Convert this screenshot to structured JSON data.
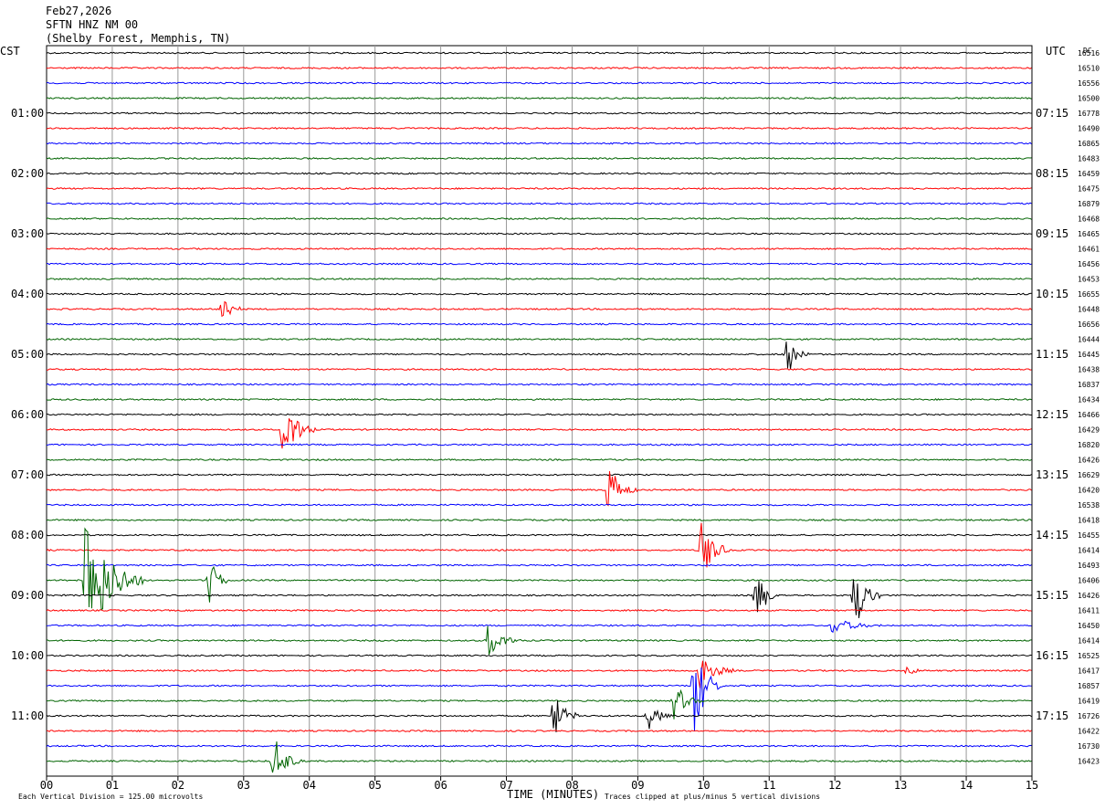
{
  "header": {
    "date": "Feb27,2026",
    "station": "SFTN HNZ NM 00",
    "location": "(Shelby Forest, Memphis, TN)"
  },
  "left_axis_title": "CST",
  "right_axis_title": "UTC",
  "dc_title": "DC",
  "footer": {
    "scale_note": "Each Vertical Division =  125.00 microvolts",
    "clip_note": "Traces clipped at plus/minus 5 vertical divisions"
  },
  "colors": {
    "trace_cycle": [
      "#000000",
      "#ff0000",
      "#0000ff",
      "#006400"
    ],
    "grid": "#999999"
  },
  "chart_data": {
    "type": "line",
    "xlabel": "TIME (MINUTES)",
    "xlim": [
      0,
      15
    ],
    "x_ticks": [
      "00",
      "01",
      "02",
      "03",
      "04",
      "05",
      "06",
      "07",
      "08",
      "09",
      "10",
      "11",
      "12",
      "13",
      "14",
      "15"
    ],
    "row_count": 48,
    "left_hour_labels": [
      "01:00",
      "02:00",
      "03:00",
      "04:00",
      "05:00",
      "06:00",
      "07:00",
      "08:00",
      "09:00",
      "10:00",
      "11:00"
    ],
    "right_hour_labels": [
      "07:15",
      "08:15",
      "09:15",
      "10:15",
      "11:15",
      "12:15",
      "13:15",
      "14:15",
      "15:15",
      "16:15",
      "17:15"
    ],
    "dc_values": [
      "16516",
      "16510",
      "16556",
      "16500",
      "16778",
      "16490",
      "16865",
      "16483",
      "16459",
      "16475",
      "16879",
      "16468",
      "16465",
      "16461",
      "16456",
      "16453",
      "16655",
      "16448",
      "16656",
      "16444",
      "16445",
      "16438",
      "16837",
      "16434",
      "16466",
      "16429",
      "16820",
      "16426",
      "16629",
      "16420",
      "16538",
      "16418",
      "16455",
      "16414",
      "16493",
      "16406",
      "16426",
      "16411",
      "16450",
      "16414",
      "16525",
      "16417",
      "16857",
      "16419",
      "16726",
      "16422",
      "16730",
      "16423"
    ],
    "events": [
      {
        "row": 17,
        "minute": 2.67,
        "amplitude": 1.3,
        "duration": 0.3
      },
      {
        "row": 20,
        "minute": 11.25,
        "amplitude": 2.0,
        "duration": 0.35
      },
      {
        "row": 25,
        "minute": 3.6,
        "amplitude": 2.2,
        "duration": 0.5
      },
      {
        "row": 29,
        "minute": 8.55,
        "amplitude": 2.0,
        "duration": 0.45
      },
      {
        "row": 33,
        "minute": 9.97,
        "amplitude": 2.2,
        "duration": 0.45
      },
      {
        "row": 35,
        "minute": 0.58,
        "amplitude": 5.0,
        "duration": 0.9
      },
      {
        "row": 35,
        "minute": 2.47,
        "amplitude": 1.8,
        "duration": 0.35
      },
      {
        "row": 36,
        "minute": 10.8,
        "amplitude": 2.0,
        "duration": 0.35
      },
      {
        "row": 36,
        "minute": 12.3,
        "amplitude": 2.5,
        "duration": 0.4
      },
      {
        "row": 38,
        "minute": 11.95,
        "amplitude": 0.6,
        "duration": 0.9
      },
      {
        "row": 39,
        "minute": 6.72,
        "amplitude": 1.2,
        "duration": 0.5
      },
      {
        "row": 41,
        "minute": 9.95,
        "amplitude": 1.5,
        "duration": 0.5
      },
      {
        "row": 41,
        "minute": 13.1,
        "amplitude": 0.4,
        "duration": 0.3
      },
      {
        "row": 42,
        "minute": 9.85,
        "amplitude": 3.5,
        "duration": 0.45
      },
      {
        "row": 43,
        "minute": 9.55,
        "amplitude": 1.3,
        "duration": 0.45
      },
      {
        "row": 44,
        "minute": 7.7,
        "amplitude": 2.0,
        "duration": 0.4
      },
      {
        "row": 44,
        "minute": 9.15,
        "amplitude": 1.0,
        "duration": 0.45
      },
      {
        "row": 47,
        "minute": 3.45,
        "amplitude": 2.0,
        "duration": 0.45
      }
    ]
  }
}
